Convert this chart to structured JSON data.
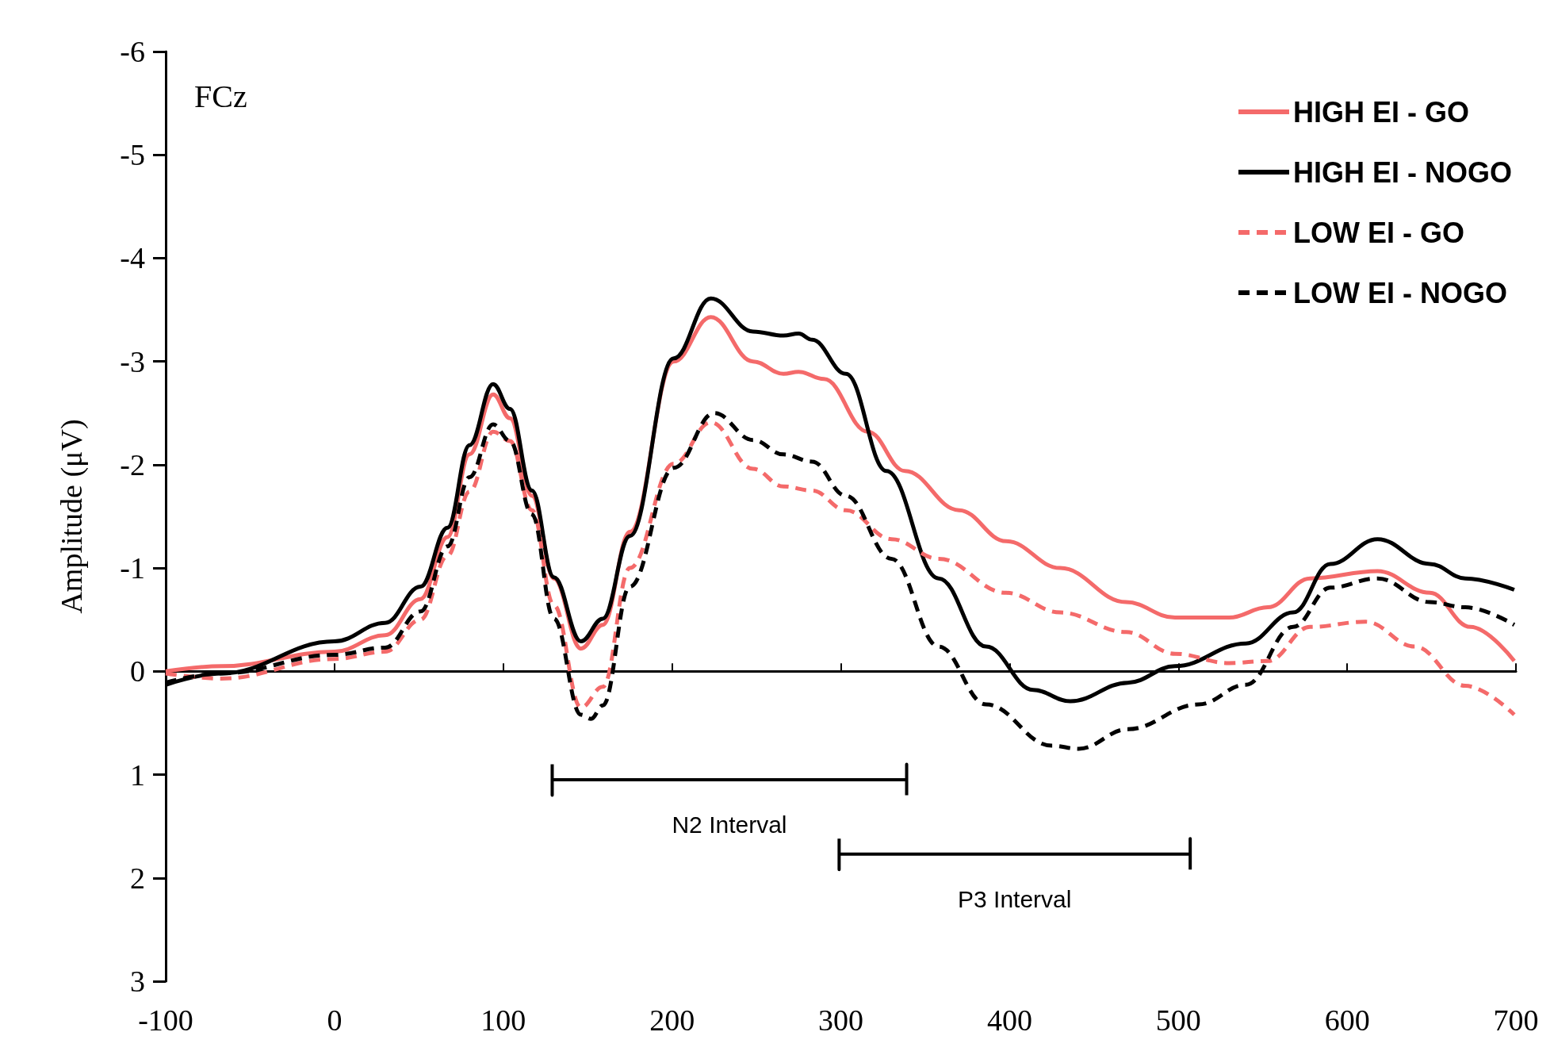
{
  "chart_data": {
    "type": "line",
    "title": "FCz",
    "ylabel": "Amplitude (μV)",
    "xlim": [
      -100,
      700
    ],
    "xticks": [
      -100,
      0,
      100,
      200,
      300,
      400,
      500,
      600,
      700
    ],
    "ylim": [
      3,
      -6
    ],
    "yticks": [
      -6,
      -5,
      -4,
      -3,
      -2,
      -1,
      0,
      1,
      2,
      3
    ],
    "marker": "none",
    "legend": "top right",
    "series": [
      {
        "name": "HIGH EI - GO",
        "color": "#f46a6a",
        "line_style": "solid",
        "x": [
          -100,
          -67,
          0,
          30,
          51,
          67,
          80,
          94,
          104,
          117,
          130,
          146,
          159,
          175,
          201,
          223,
          248,
          266,
          275,
          290,
          316,
          338,
          370,
          398,
          430,
          469,
          498,
          530,
          553,
          578,
          618,
          649,
          673,
          699
        ],
        "values": [
          0.0,
          -0.05,
          -0.19,
          -0.35,
          -0.7,
          -1.3,
          -2.1,
          -2.68,
          -2.45,
          -1.7,
          -0.9,
          -0.22,
          -0.45,
          -1.35,
          -3.0,
          -3.43,
          -3.0,
          -2.88,
          -2.9,
          -2.83,
          -2.32,
          -1.94,
          -1.56,
          -1.26,
          -1.0,
          -0.67,
          -0.52,
          -0.52,
          -0.62,
          -0.9,
          -0.97,
          -0.76,
          -0.43,
          -0.1
        ]
      },
      {
        "name": "HIGH EI - NOGO",
        "color": "#000000",
        "line_style": "solid",
        "x": [
          -100,
          -67,
          0,
          30,
          51,
          67,
          80,
          94,
          104,
          117,
          130,
          146,
          159,
          175,
          201,
          223,
          248,
          266,
          275,
          283,
          303,
          327,
          358,
          386,
          414,
          436,
          470,
          498,
          540,
          568,
          590,
          618,
          649,
          670,
          699
        ],
        "values": [
          0.13,
          0.02,
          -0.29,
          -0.47,
          -0.82,
          -1.39,
          -2.19,
          -2.78,
          -2.54,
          -1.75,
          -0.91,
          -0.29,
          -0.51,
          -1.31,
          -3.03,
          -3.61,
          -3.29,
          -3.25,
          -3.27,
          -3.21,
          -2.88,
          -1.94,
          -0.9,
          -0.24,
          0.18,
          0.29,
          0.11,
          -0.05,
          -0.27,
          -0.57,
          -1.04,
          -1.28,
          -1.04,
          -0.9,
          -0.79
        ]
      },
      {
        "name": "LOW EI - GO",
        "color": "#f46a6a",
        "line_style": "dashed",
        "x": [
          -100,
          -67,
          0,
          30,
          51,
          67,
          80,
          94,
          104,
          117,
          130,
          146,
          159,
          175,
          201,
          223,
          248,
          266,
          283,
          303,
          330,
          358,
          398,
          430,
          469,
          498,
          530,
          553,
          578,
          611,
          640,
          670,
          699
        ],
        "values": [
          0.02,
          0.07,
          -0.12,
          -0.19,
          -0.5,
          -1.12,
          -1.74,
          -2.32,
          -2.23,
          -1.56,
          -0.64,
          0.35,
          0.15,
          -1.0,
          -2.01,
          -2.41,
          -1.96,
          -1.79,
          -1.75,
          -1.56,
          -1.28,
          -1.09,
          -0.76,
          -0.57,
          -0.38,
          -0.17,
          -0.08,
          -0.1,
          -0.43,
          -0.48,
          -0.24,
          0.14,
          0.42
        ]
      },
      {
        "name": "LOW EI - NOGO",
        "color": "#000000",
        "line_style": "dashed",
        "x": [
          -100,
          -67,
          0,
          30,
          51,
          67,
          80,
          94,
          104,
          117,
          130,
          146,
          152,
          159,
          175,
          201,
          225,
          248,
          266,
          283,
          303,
          330,
          358,
          386,
          425,
          441,
          470,
          512,
          540,
          568,
          590,
          618,
          649,
          670,
          699
        ],
        "values": [
          0.11,
          0.02,
          -0.16,
          -0.23,
          -0.58,
          -1.21,
          -1.88,
          -2.39,
          -2.23,
          -1.52,
          -0.51,
          0.42,
          0.46,
          0.33,
          -0.82,
          -1.97,
          -2.5,
          -2.24,
          -2.1,
          -2.03,
          -1.7,
          -1.09,
          -0.24,
          0.32,
          0.72,
          0.75,
          0.56,
          0.32,
          0.13,
          -0.43,
          -0.81,
          -0.9,
          -0.67,
          -0.62,
          -0.45
        ]
      },
      {
        "color": "#000000",
        "line_style": "solid",
        "x": [
          129,
          129,
          129,
          339,
          339,
          339
        ],
        "values": [
          0.9,
          1.2,
          1.05,
          1.05,
          0.9,
          1.2
        ]
      },
      {
        "color": "#000000",
        "line_style": "solid",
        "x": [
          299,
          299,
          299,
          507,
          507,
          507
        ],
        "values": [
          1.62,
          1.92,
          1.77,
          1.77,
          1.62,
          1.92
        ]
      }
    ],
    "annotations": [
      "N2 Interval",
      "P3 Interval"
    ]
  }
}
